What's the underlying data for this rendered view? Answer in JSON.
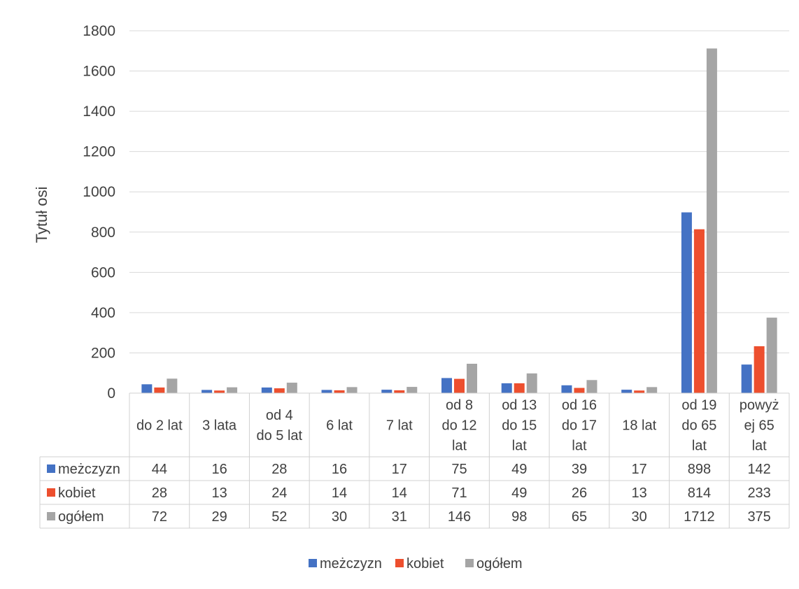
{
  "chart_data": {
    "type": "bar",
    "ylabel": "Tytuł osi",
    "xlabel": "",
    "ylim": [
      0,
      1800
    ],
    "yticks": [
      "0",
      "200",
      "400",
      "600",
      "800",
      "1000",
      "1200",
      "1400",
      "1600",
      "1800"
    ],
    "grid": true,
    "legend_position": "bottom",
    "data_table": true,
    "categories": [
      [
        "do 2 lat"
      ],
      [
        "3 lata"
      ],
      [
        "od 4",
        "do 5 lat"
      ],
      [
        "6 lat"
      ],
      [
        "7 lat"
      ],
      [
        "od 8",
        "do 12",
        "lat"
      ],
      [
        "od 13",
        "do 15",
        "lat"
      ],
      [
        "od 16",
        "do 17",
        "lat"
      ],
      [
        "18 lat"
      ],
      [
        "od 19",
        "do 65",
        "lat"
      ],
      [
        "powyż",
        "ej 65",
        "lat"
      ]
    ],
    "series": [
      {
        "name": "meżczyzn",
        "color": "#4472C4",
        "values": [
          44,
          16,
          28,
          16,
          17,
          75,
          49,
          39,
          17,
          898,
          142
        ]
      },
      {
        "name": "kobiet",
        "color": "#ED4F2E",
        "values": [
          28,
          13,
          24,
          14,
          14,
          71,
          49,
          26,
          13,
          814,
          233
        ]
      },
      {
        "name": "ogółem",
        "color": "#A5A5A5",
        "values": [
          72,
          29,
          52,
          30,
          31,
          146,
          98,
          65,
          30,
          1712,
          375
        ]
      }
    ]
  }
}
